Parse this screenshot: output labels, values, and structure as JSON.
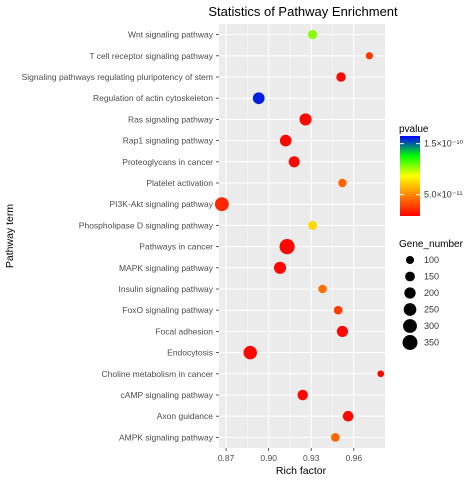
{
  "chart_data": {
    "type": "scatter",
    "title": "Statistics of Pathway Enrichment",
    "xlabel": "Rich factor",
    "ylabel": "Pathway term",
    "xlim": [
      0.865,
      0.982
    ],
    "xticks": [
      {
        "value": 0.87,
        "label": "0.87"
      },
      {
        "value": 0.9,
        "label": "0.90"
      },
      {
        "value": 0.93,
        "label": "0.93"
      },
      {
        "value": 0.96,
        "label": "0.96"
      }
    ],
    "grid": true,
    "legend_placement": "right",
    "categories": [
      "Wnt signaling pathway",
      "T cell receptor signaling pathway",
      "Signaling pathways regulating pluripotency of stem",
      "Regulation of actin cytoskeleton",
      "Ras signaling pathway",
      "Rap1 signaling pathway",
      "Proteoglycans in cancer",
      "Platelet activation",
      "PI3K-Akt signaling pathway",
      "Phospholipase D signaling pathway",
      "Pathways in cancer",
      "MAPK signaling pathway",
      "Insulin signaling pathway",
      "FoxO signaling pathway",
      "Focal adhesion",
      "Endocytosis",
      "Choline metabolism in cancer",
      "cAMP signaling pathway",
      "Axon guidance",
      "AMPK signaling pathway"
    ],
    "points": [
      {
        "term": "Wnt signaling pathway",
        "x": 0.931,
        "gene_number": 130,
        "pvalue": 1.05e-10
      },
      {
        "term": "T cell receptor signaling pathway",
        "x": 0.971,
        "gene_number": 82,
        "pvalue": 2.5e-11
      },
      {
        "term": "Signaling pathways regulating pluripotency of stem",
        "x": 0.951,
        "gene_number": 140,
        "pvalue": 1e-11
      },
      {
        "term": "Regulation of actin cytoskeleton",
        "x": 0.893,
        "gene_number": 215,
        "pvalue": 1.6e-10
      },
      {
        "term": "Ras signaling pathway",
        "x": 0.926,
        "gene_number": 230,
        "pvalue": 1e-11
      },
      {
        "term": "Rap1 signaling pathway",
        "x": 0.912,
        "gene_number": 210,
        "pvalue": 1e-11
      },
      {
        "term": "Proteoglycans in cancer",
        "x": 0.918,
        "gene_number": 190,
        "pvalue": 1e-11
      },
      {
        "term": "Platelet activation",
        "x": 0.952,
        "gene_number": 110,
        "pvalue": 3.8e-11
      },
      {
        "term": "PI3K-Akt signaling pathway",
        "x": 0.867,
        "gene_number": 300,
        "pvalue": 2e-11
      },
      {
        "term": "Phospholipase D signaling pathway",
        "x": 0.931,
        "gene_number": 125,
        "pvalue": 7.5e-11
      },
      {
        "term": "Pathways in cancer",
        "x": 0.913,
        "gene_number": 360,
        "pvalue": 1e-11
      },
      {
        "term": "MAPK signaling pathway",
        "x": 0.908,
        "gene_number": 230,
        "pvalue": 1e-11
      },
      {
        "term": "Insulin signaling pathway",
        "x": 0.938,
        "gene_number": 115,
        "pvalue": 4.2e-11
      },
      {
        "term": "FoxO signaling pathway",
        "x": 0.949,
        "gene_number": 118,
        "pvalue": 2.6e-11
      },
      {
        "term": "Focal adhesion",
        "x": 0.952,
        "gene_number": 195,
        "pvalue": 1e-11
      },
      {
        "term": "Endocytosis",
        "x": 0.887,
        "gene_number": 285,
        "pvalue": 1e-11
      },
      {
        "term": "Choline metabolism in cancer",
        "x": 0.979,
        "gene_number": 70,
        "pvalue": 1e-11
      },
      {
        "term": "cAMP signaling pathway",
        "x": 0.924,
        "gene_number": 170,
        "pvalue": 1e-11
      },
      {
        "term": "Axon guidance",
        "x": 0.956,
        "gene_number": 175,
        "pvalue": 1e-11
      },
      {
        "term": "AMPK signaling pathway",
        "x": 0.947,
        "gene_number": 120,
        "pvalue": 4e-11
      }
    ],
    "color_legend": {
      "title": "pvalue",
      "labels": [
        {
          "label": "1.5×10⁻¹⁰",
          "value": 1.5e-10
        },
        {
          "label": "5.0×10⁻¹¹",
          "value": 5e-11
        }
      ],
      "range": [
        8e-12,
        1.65e-10
      ],
      "colors": [
        "#ff0000",
        "#ff8000",
        "#ffff00",
        "#00ff00",
        "#0000ff"
      ]
    },
    "size_legend": {
      "title": "Gene_number",
      "values": [
        100,
        150,
        200,
        250,
        300,
        350
      ],
      "labels": [
        "100",
        "150",
        "200",
        "250",
        "300",
        "350"
      ]
    }
  }
}
